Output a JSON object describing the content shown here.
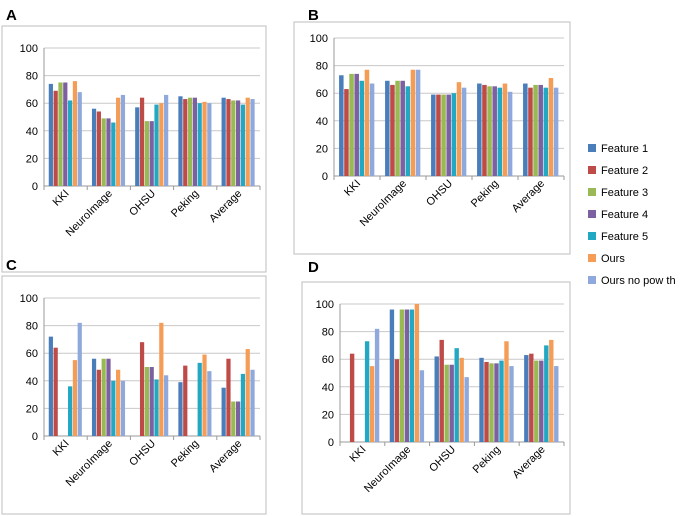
{
  "colors": [
    "#4a7ebb",
    "#be4b48",
    "#98b954",
    "#7d60a0",
    "#23a8c4",
    "#f59d56",
    "#8fa9dc"
  ],
  "legend": [
    "Feature 1",
    "Feature 2",
    "Feature 3",
    "Feature 4",
    "Feature 5",
    "Ours",
    "Ours no pow th"
  ],
  "chart_data": [
    {
      "type": "bar",
      "panel": "A",
      "categories": [
        "KKI",
        "NeuroImage",
        "OHSU",
        "Peking",
        "Average"
      ],
      "ylim": [
        0,
        100
      ],
      "yticks": [
        "0",
        "20",
        "40",
        "60",
        "80",
        "100"
      ],
      "series": [
        {
          "name": "Feature 1",
          "values": [
            74,
            56,
            57,
            65,
            64
          ]
        },
        {
          "name": "Feature 2",
          "values": [
            69,
            54,
            64,
            63,
            63
          ]
        },
        {
          "name": "Feature 3",
          "values": [
            75,
            49,
            47,
            64,
            62
          ]
        },
        {
          "name": "Feature 4",
          "values": [
            75,
            49,
            47,
            64,
            62
          ]
        },
        {
          "name": "Feature 5",
          "values": [
            62,
            46,
            59,
            60,
            59
          ]
        },
        {
          "name": "Ours",
          "values": [
            76,
            64,
            60,
            61,
            64
          ]
        },
        {
          "name": "Ours no pow th",
          "values": [
            68,
            66,
            66,
            60,
            63
          ]
        }
      ]
    },
    {
      "type": "bar",
      "panel": "B",
      "categories": [
        "KKI",
        "NeuroImage",
        "OHSU",
        "Peking",
        "Average"
      ],
      "ylim": [
        0,
        100
      ],
      "yticks": [
        "0",
        "20",
        "40",
        "60",
        "80",
        "100"
      ],
      "series": [
        {
          "name": "Feature 1",
          "values": [
            73,
            69,
            59,
            67,
            67
          ]
        },
        {
          "name": "Feature 2",
          "values": [
            63,
            66,
            59,
            66,
            64
          ]
        },
        {
          "name": "Feature 3",
          "values": [
            74,
            69,
            59,
            65,
            66
          ]
        },
        {
          "name": "Feature 4",
          "values": [
            74,
            69,
            59,
            65,
            66
          ]
        },
        {
          "name": "Feature 5",
          "values": [
            69,
            65,
            60,
            64,
            64
          ]
        },
        {
          "name": "Ours",
          "values": [
            77,
            77,
            68,
            67,
            71
          ]
        },
        {
          "name": "Ours no pow th",
          "values": [
            67,
            77,
            64,
            61,
            64
          ]
        }
      ]
    },
    {
      "type": "bar",
      "panel": "C",
      "categories": [
        "KKI",
        "NeuroImage",
        "OHSU",
        "Peking",
        "Average"
      ],
      "ylim": [
        0,
        100
      ],
      "yticks": [
        "0",
        "20",
        "40",
        "60",
        "80",
        "100"
      ],
      "series": [
        {
          "name": "Feature 1",
          "values": [
            72,
            56,
            0,
            39,
            35
          ]
        },
        {
          "name": "Feature 2",
          "values": [
            64,
            48,
            68,
            51,
            56
          ]
        },
        {
          "name": "Feature 3",
          "values": [
            0,
            56,
            50,
            0,
            25
          ]
        },
        {
          "name": "Feature 4",
          "values": [
            0,
            56,
            50,
            0,
            25
          ]
        },
        {
          "name": "Feature 5",
          "values": [
            36,
            40,
            41,
            53,
            45
          ]
        },
        {
          "name": "Ours",
          "values": [
            55,
            48,
            82,
            59,
            63
          ]
        },
        {
          "name": "Ours no pow th",
          "values": [
            82,
            40,
            44,
            47,
            48
          ]
        }
      ]
    },
    {
      "type": "bar",
      "panel": "D",
      "categories": [
        "KKI",
        "NeuroImage",
        "OHSU",
        "Peking",
        "Average"
      ],
      "ylim": [
        0,
        100
      ],
      "yticks": [
        "0",
        "20",
        "40",
        "60",
        "80",
        "100"
      ],
      "series": [
        {
          "name": "Feature 1",
          "values": [
            0,
            96,
            62,
            61,
            63
          ]
        },
        {
          "name": "Feature 2",
          "values": [
            64,
            60,
            74,
            58,
            64
          ]
        },
        {
          "name": "Feature 3",
          "values": [
            0,
            96,
            56,
            57,
            59
          ]
        },
        {
          "name": "Feature 4",
          "values": [
            0,
            96,
            56,
            57,
            59
          ]
        },
        {
          "name": "Feature 5",
          "values": [
            73,
            96,
            68,
            59,
            70
          ]
        },
        {
          "name": "Ours",
          "values": [
            55,
            100,
            61,
            73,
            74
          ]
        },
        {
          "name": "Ours no pow th",
          "values": [
            82,
            52,
            47,
            55,
            55
          ]
        }
      ]
    }
  ]
}
